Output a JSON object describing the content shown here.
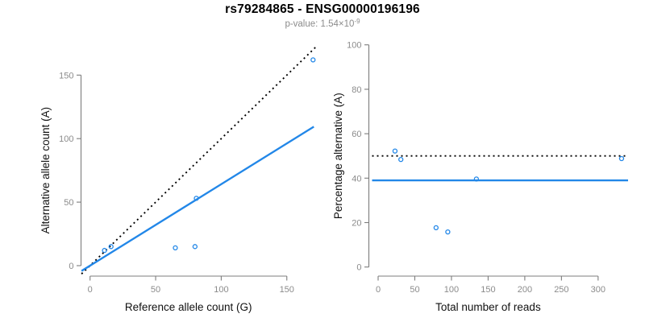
{
  "header": {
    "title": "rs79284865 - ENSG00000196196",
    "subtitle": "p-value: 1.54×10",
    "subtitle_exponent": "-9"
  },
  "colors": {
    "accent_blue": "#2287E8",
    "line_black": "#000000",
    "axis_gray": "#7d7d7d",
    "tick_label_gray": "#8b8b8b",
    "axis_title_black": "#111111",
    "subtitle_gray": "#8b8b8b"
  },
  "chart_data": [
    {
      "type": "scatter",
      "name": "allele-count-scatter",
      "title": "",
      "xlabel": "Reference allele count (G)",
      "ylabel": "Alternative allele count (A)",
      "xlim": [
        0,
        170
      ],
      "ylim": [
        0,
        172
      ],
      "xticks": [
        0,
        50,
        100,
        150
      ],
      "yticks": [
        0,
        50,
        100,
        150
      ],
      "grid": false,
      "legend": "none",
      "points": [
        [
          11,
          12
        ],
        [
          16,
          15
        ],
        [
          65,
          14
        ],
        [
          80,
          15
        ],
        [
          81,
          53
        ],
        [
          170,
          162
        ]
      ],
      "lines": [
        {
          "name": "expected-identity-line",
          "meaning": "expected 1:1 ratio (slope 1)",
          "style": "dotted",
          "color": "black",
          "pts": [
            [
              -6.5,
              -6.5
            ],
            [
              172.5,
              172.5
            ]
          ]
        },
        {
          "name": "fitted-line",
          "meaning": "fitted allelic ratio (slope 0.64)",
          "style": "solid",
          "color": "blue",
          "pts": [
            [
              -6.5,
              -4.17
            ],
            [
              170.6,
              109.4
            ]
          ]
        }
      ]
    },
    {
      "type": "scatter",
      "name": "percentage-scatter",
      "title": "",
      "xlabel": "Total number of reads",
      "ylabel": "Percentage alternative (A)",
      "xlim": [
        0,
        334
      ],
      "ylim": [
        0,
        100
      ],
      "xticks": [
        0,
        50,
        100,
        150,
        200,
        250,
        300
      ],
      "yticks": [
        0,
        20,
        40,
        60,
        80,
        100
      ],
      "grid": false,
      "legend": "none",
      "points": [
        [
          23,
          52.2
        ],
        [
          31,
          48.4
        ],
        [
          79,
          17.7
        ],
        [
          95,
          15.8
        ],
        [
          134,
          39.6
        ],
        [
          332,
          48.8
        ]
      ],
      "lines": [
        {
          "name": "expected-50pct-line",
          "meaning": "expected 50% alternative",
          "style": "dotted",
          "color": "black",
          "y": 50
        },
        {
          "name": "mean-percentage-line",
          "meaning": "observed overall percentage ~39%",
          "style": "solid",
          "color": "blue",
          "y": 39
        }
      ]
    }
  ]
}
